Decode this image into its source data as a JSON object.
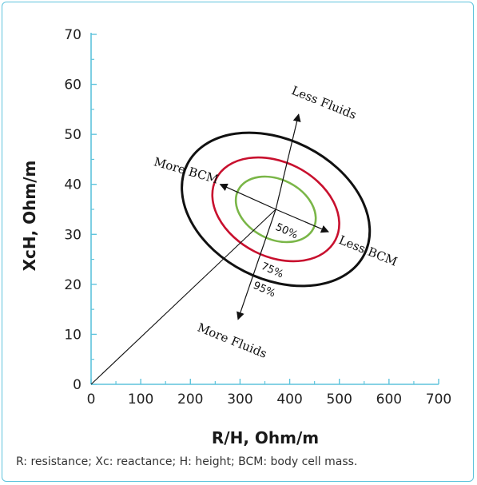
{
  "chart_data": {
    "type": "scatter",
    "title": "",
    "xlabel": "R/H, Ohm/m",
    "ylabel": "XcH, Ohm/m",
    "xlim": [
      0,
      700
    ],
    "ylim": [
      0,
      70
    ],
    "x_ticks": [
      "0",
      "100",
      "200",
      "300",
      "400",
      "500",
      "600",
      "700"
    ],
    "y_ticks": [
      "0",
      "10",
      "20",
      "30",
      "40",
      "50",
      "60",
      "70"
    ],
    "colors": {
      "axis": "#5ec3dc",
      "e50": "#7ab648",
      "e75": "#c8102e",
      "e95": "#111111"
    },
    "center": {
      "x": 372,
      "y": 35
    },
    "ellipses": [
      {
        "label": "50%",
        "cx": 372,
        "cy": 35,
        "rx": 60,
        "ry": 8.5,
        "angle_deg": 63,
        "color": "#7ab648"
      },
      {
        "label": "75%",
        "cx": 372,
        "cy": 35,
        "rx": 95,
        "ry": 13.5,
        "angle_deg": 63,
        "color": "#c8102e"
      },
      {
        "label": "95%",
        "cx": 372,
        "cy": 35,
        "rx": 140,
        "ry": 20,
        "angle_deg": 63,
        "color": "#111111"
      }
    ],
    "vector_line": {
      "from": [
        0,
        0
      ],
      "to": [
        372,
        35
      ]
    },
    "arrows": [
      {
        "label": "Less Fluids",
        "from": [
          372,
          35
        ],
        "to": [
          418,
          54
        ]
      },
      {
        "label": "More Fluids",
        "from": [
          372,
          35
        ],
        "to": [
          296,
          13
        ]
      },
      {
        "label": "More BCM",
        "from": [
          372,
          35
        ],
        "to": [
          260,
          40
        ]
      },
      {
        "label": "Less BCM",
        "from": [
          372,
          35
        ],
        "to": [
          478,
          30.5
        ]
      }
    ],
    "percent_labels": [
      "50%",
      "75%",
      "95%"
    ]
  },
  "footnote": "R: resistance; Xc: reactance; H: height; BCM: body cell mass."
}
